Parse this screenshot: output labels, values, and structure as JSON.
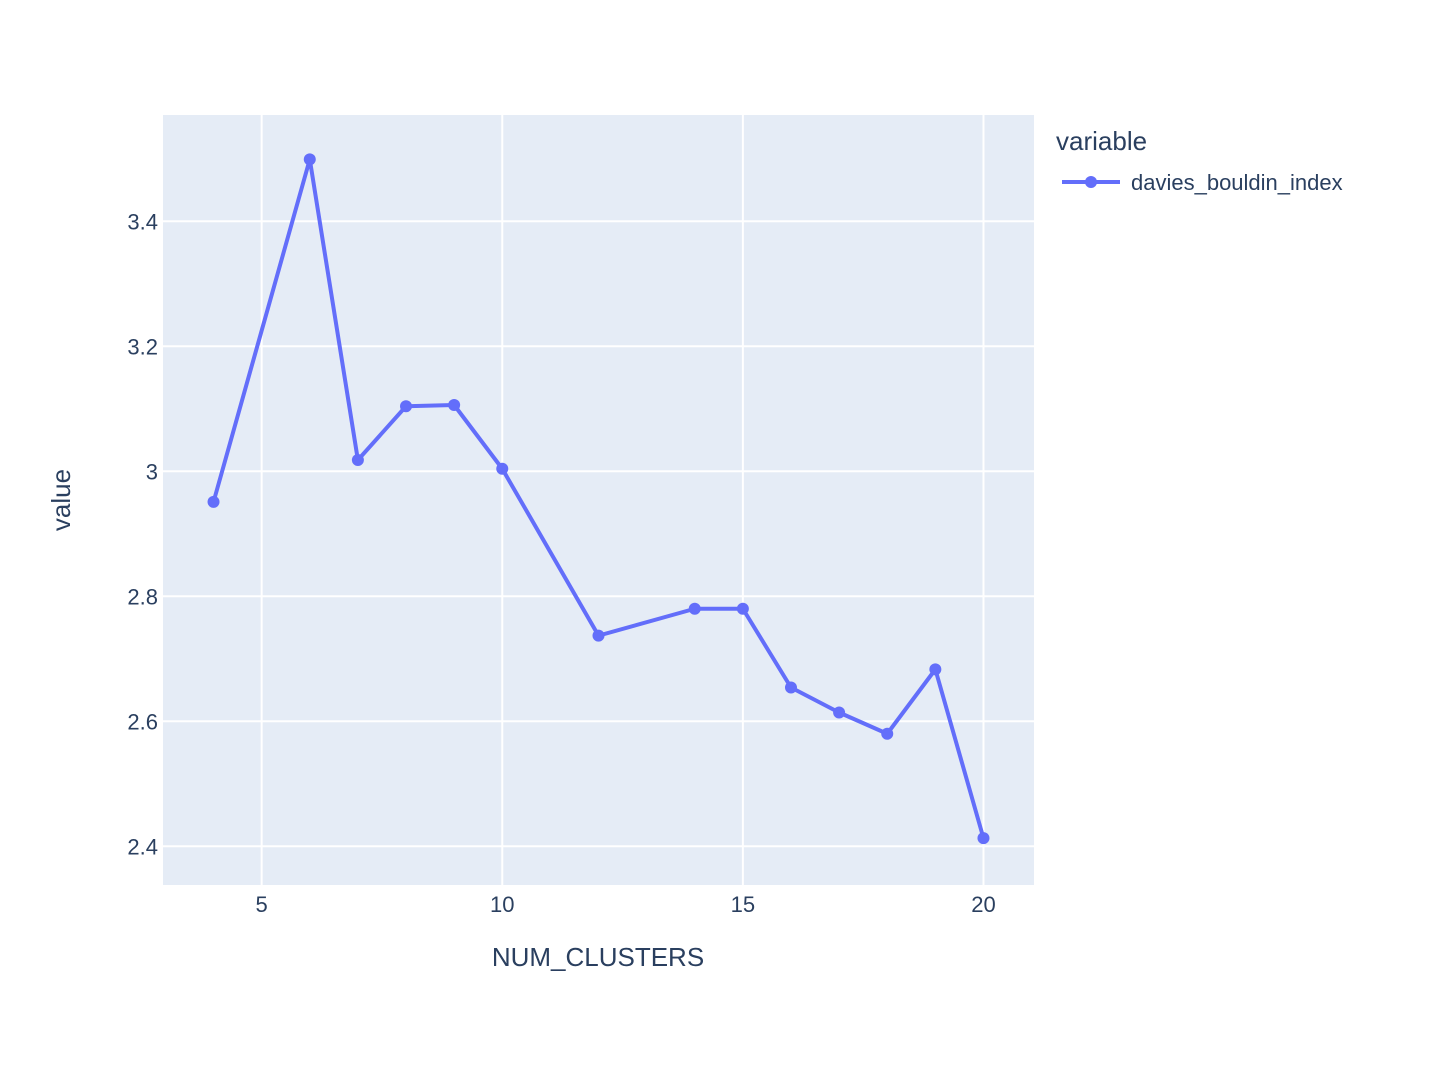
{
  "chart_data": {
    "type": "line",
    "title": "",
    "xlabel": "NUM_CLUSTERS",
    "ylabel": "value",
    "xlim": [
      2.95,
      21.05
    ],
    "ylim": [
      2.338,
      3.57
    ],
    "x_ticks": [
      5,
      10,
      15,
      20
    ],
    "x_tick_labels": [
      "5",
      "10",
      "15",
      "20"
    ],
    "y_ticks": [
      2.4,
      2.6,
      2.8,
      3.0,
      3.2,
      3.4
    ],
    "y_tick_labels": [
      "2.4",
      "2.6",
      "2.8",
      "3",
      "3.2",
      "3.4"
    ],
    "grid": true,
    "legend": {
      "title": "variable",
      "placement": "top-right outside"
    },
    "series": [
      {
        "name": "davies_bouldin_index",
        "color": "#636efa",
        "x": [
          4,
          6,
          7,
          8,
          9,
          10,
          12,
          14,
          15,
          16,
          17,
          18,
          19,
          20
        ],
        "y": [
          2.951,
          3.499,
          3.018,
          3.104,
          3.106,
          3.004,
          2.737,
          2.78,
          2.78,
          2.654,
          2.614,
          2.58,
          2.683,
          2.413
        ]
      }
    ],
    "colors": {
      "plot_background": "#e5ecf6",
      "grid": "#ffffff",
      "text": "#2a3f5f"
    }
  }
}
